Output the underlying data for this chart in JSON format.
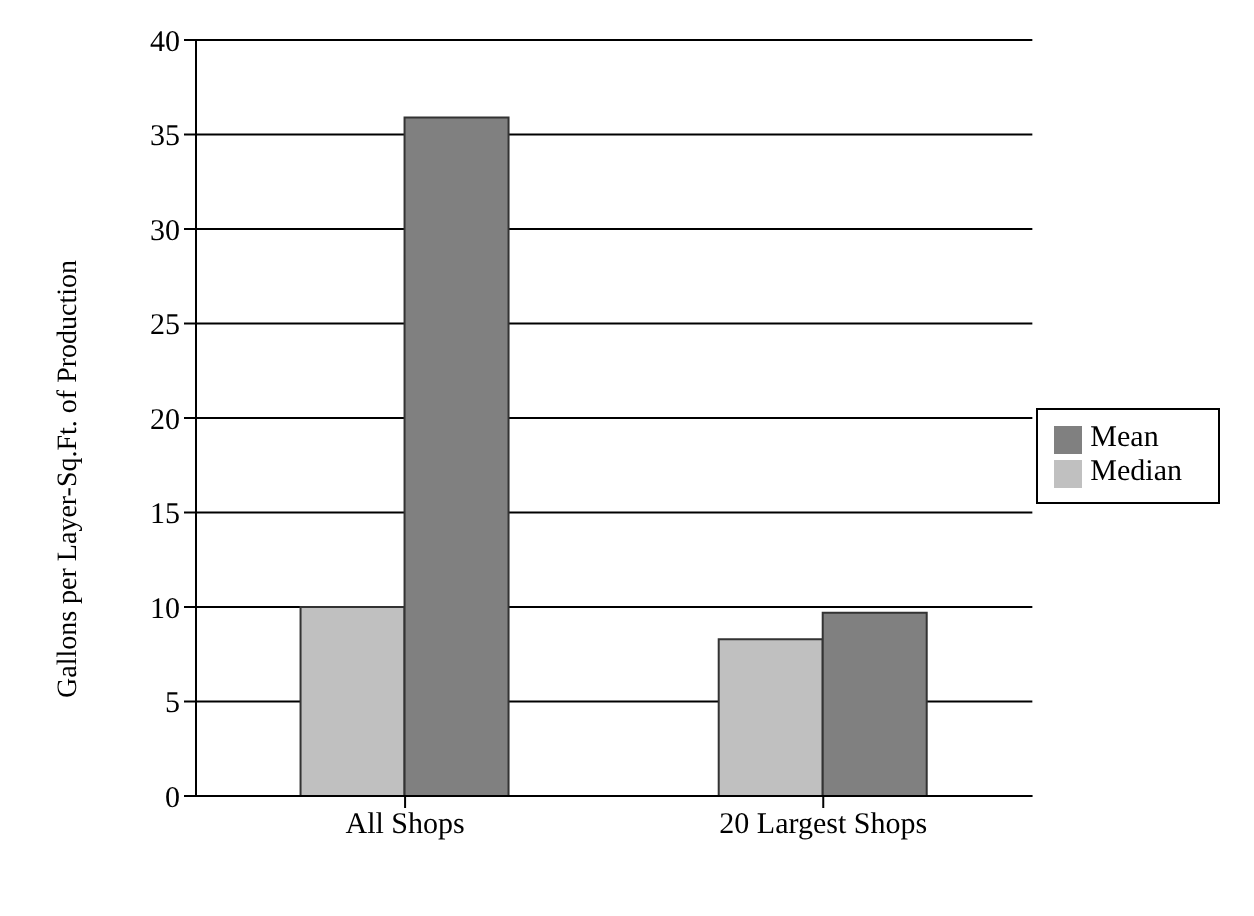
{
  "chart_data": {
    "type": "bar",
    "ylabel": "Gallons per Layer-Sq.Ft. of Production",
    "categories": [
      "All Shops",
      "20 Largest Shops"
    ],
    "series": [
      {
        "name": "Median",
        "color": "#c0c0c0",
        "values": [
          10,
          8.3
        ]
      },
      {
        "name": "Mean",
        "color": "#808080",
        "values": [
          35.9,
          9.7
        ]
      }
    ],
    "ylim": [
      0,
      40
    ],
    "yticks": [
      0,
      5,
      10,
      15,
      20,
      25,
      30,
      35,
      40
    ],
    "grid": "y",
    "legend": "right"
  }
}
